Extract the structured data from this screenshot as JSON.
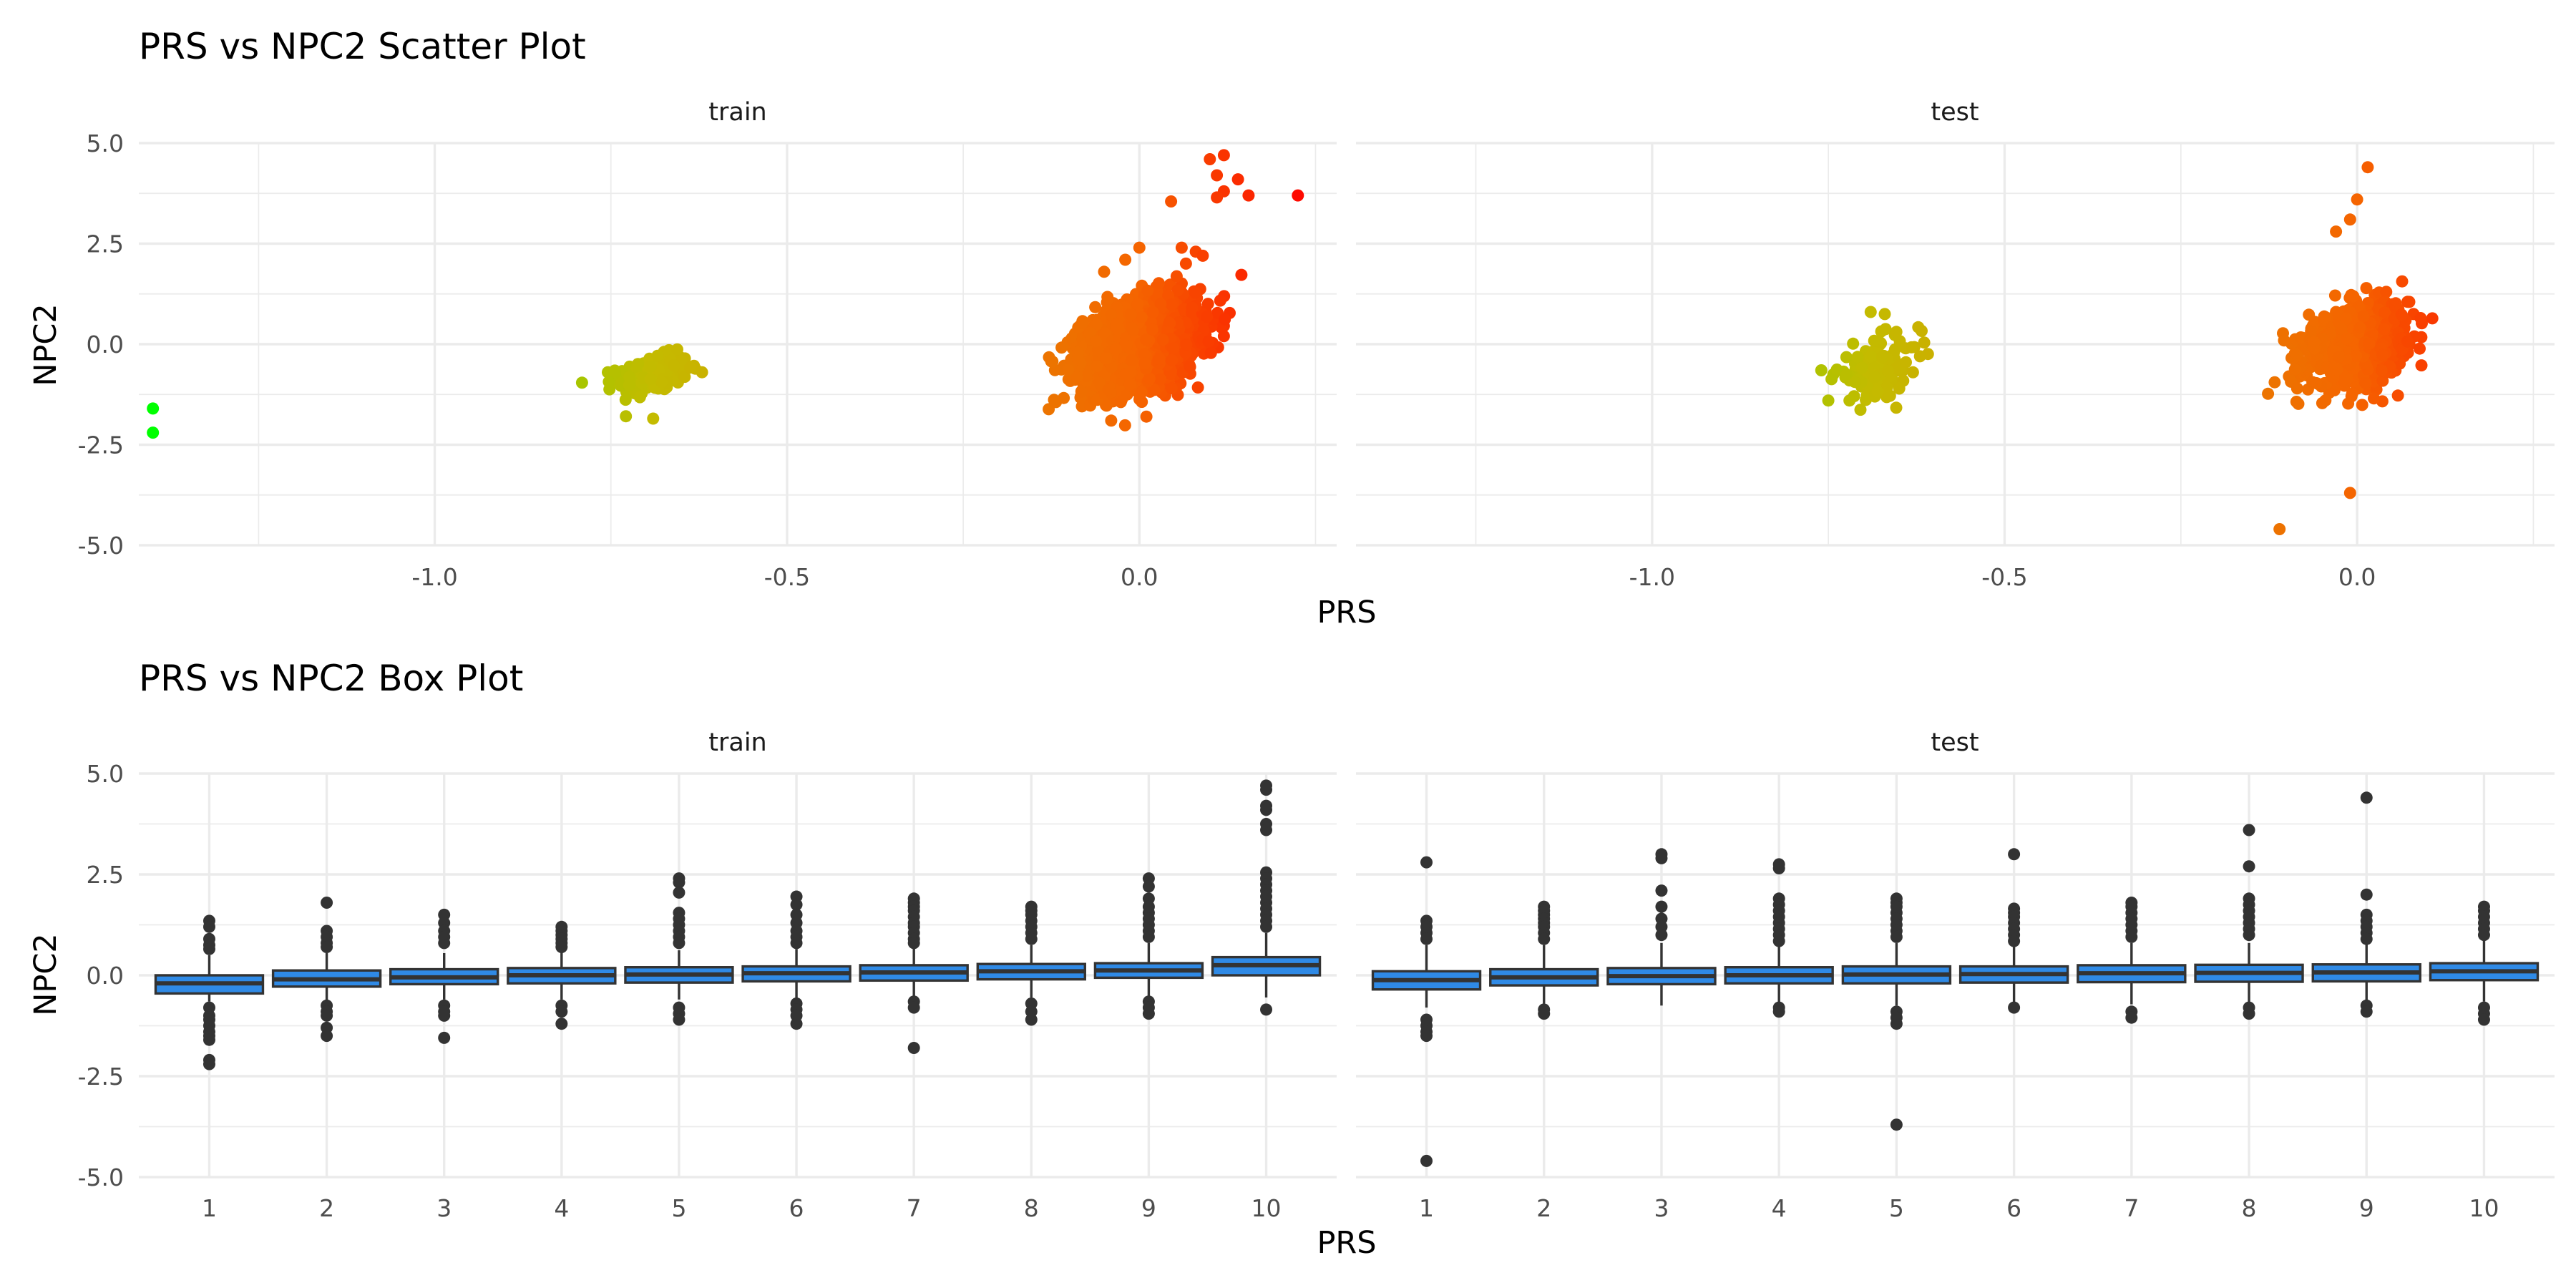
{
  "figure": {
    "colors": {
      "box_fill": "#2f8ae6",
      "box_stroke": "#333333",
      "outlier": "#333333",
      "grid": "#ebebeb",
      "gradient_low": "#00ff00",
      "gradient_high": "#ff0000"
    }
  },
  "chart_data": [
    {
      "type": "scatter",
      "title": "PRS vs NPC2 Scatter Plot",
      "xlabel": "PRS",
      "ylabel": "NPC2",
      "facets": [
        "train",
        "test"
      ],
      "xlim": [
        -1.42,
        0.28
      ],
      "ylim": [
        -5.0,
        5.0
      ],
      "xticks": [
        -1.0,
        -0.5,
        0.0
      ],
      "xtick_labels": [
        "-1.0",
        "-0.5",
        "0.0"
      ],
      "yticks": [
        -5.0,
        -2.5,
        0.0,
        2.5,
        5.0
      ],
      "ytick_labels": [
        "-5.0",
        "-2.5",
        "0.0",
        "2.5",
        "5.0"
      ],
      "color_mapping": "gradient from green (low PRS) to red (high PRS)",
      "grid": true,
      "panels": {
        "train": {
          "clusters": [
            {
              "x_center": -0.69,
              "y_center": -0.75,
              "x_sd": 0.025,
              "y_sd": 0.22,
              "n": 320
            },
            {
              "x_center": 0.0,
              "y_center": 0.0,
              "x_sd": 0.04,
              "y_sd": 0.5,
              "n": 2400
            }
          ],
          "points": [
            [
              -1.4,
              -1.6
            ],
            [
              -1.4,
              -2.2
            ],
            [
              0.1,
              4.6
            ],
            [
              0.12,
              4.7
            ],
            [
              0.11,
              4.2
            ],
            [
              0.14,
              4.1
            ],
            [
              0.12,
              3.8
            ],
            [
              0.11,
              3.65
            ],
            [
              0.155,
              3.7
            ],
            [
              0.045,
              3.55
            ],
            [
              0.225,
              3.7
            ],
            [
              -0.04,
              -1.9
            ],
            [
              0.01,
              -1.8
            ],
            [
              -0.69,
              -1.85
            ],
            [
              0.12,
              0.2
            ],
            [
              -0.05,
              1.8
            ],
            [
              0.0,
              2.4
            ],
            [
              0.08,
              2.3
            ],
            [
              0.06,
              2.4
            ],
            [
              0.09,
              2.2
            ],
            [
              -0.02,
              2.1
            ]
          ]
        },
        "test": {
          "clusters": [
            {
              "x_center": -0.68,
              "y_center": -0.6,
              "x_sd": 0.03,
              "y_sd": 0.35,
              "n": 110
            },
            {
              "x_center": 0.0,
              "y_center": 0.0,
              "x_sd": 0.035,
              "y_sd": 0.45,
              "n": 900
            }
          ],
          "points": [
            [
              0.015,
              4.4
            ],
            [
              0.0,
              3.6
            ],
            [
              -0.01,
              3.1
            ],
            [
              -0.03,
              2.8
            ],
            [
              -0.01,
              -3.7
            ],
            [
              -0.11,
              -4.6
            ],
            [
              0.09,
              0.65
            ],
            [
              -0.69,
              0.8
            ],
            [
              -0.67,
              0.75
            ],
            [
              -0.76,
              -0.65
            ],
            [
              -0.75,
              -1.4
            ],
            [
              -0.72,
              -1.4
            ],
            [
              -0.63,
              -0.7
            ],
            [
              -0.62,
              -0.3
            ],
            [
              -0.64,
              -0.45
            ]
          ]
        }
      }
    },
    {
      "type": "box",
      "title": "PRS vs NPC2 Box Plot",
      "xlabel": "PRS",
      "ylabel": "NPC2",
      "facets": [
        "train",
        "test"
      ],
      "categories": [
        "1",
        "2",
        "3",
        "4",
        "5",
        "6",
        "7",
        "8",
        "9",
        "10"
      ],
      "ylim": [
        -5.0,
        5.0
      ],
      "yticks": [
        -5.0,
        -2.5,
        0.0,
        2.5,
        5.0
      ],
      "ytick_labels": [
        "-5.0",
        "-2.5",
        "0.0",
        "2.5",
        "5.0"
      ],
      "grid": true,
      "panels": {
        "train": [
          {
            "q1": -0.45,
            "median": -0.2,
            "q3": 0.0,
            "lower": -0.65,
            "upper": 0.5,
            "outliers": [
              1.35,
              1.2,
              0.9,
              0.75,
              0.65,
              -0.8,
              -1.0,
              -1.1,
              -1.25,
              -1.4,
              -1.5,
              -1.6,
              -2.1,
              -2.2
            ]
          },
          {
            "q1": -0.28,
            "median": -0.1,
            "q3": 0.12,
            "lower": -0.62,
            "upper": 0.55,
            "outliers": [
              1.8,
              1.1,
              0.95,
              0.8,
              0.7,
              -0.75,
              -0.9,
              -1.0,
              -1.3,
              -1.5
            ]
          },
          {
            "q1": -0.22,
            "median": -0.05,
            "q3": 0.15,
            "lower": -0.6,
            "upper": 0.55,
            "outliers": [
              1.5,
              1.3,
              1.1,
              0.95,
              0.8,
              -0.75,
              -0.9,
              -1.0,
              -1.55
            ]
          },
          {
            "q1": -0.2,
            "median": 0.0,
            "q3": 0.18,
            "lower": -0.6,
            "upper": 0.6,
            "outliers": [
              1.2,
              1.1,
              1.0,
              0.9,
              0.8,
              0.7,
              -0.75,
              -0.9,
              -1.2
            ]
          },
          {
            "q1": -0.18,
            "median": 0.02,
            "q3": 0.2,
            "lower": -0.6,
            "upper": 0.62,
            "outliers": [
              2.4,
              2.3,
              2.05,
              1.55,
              1.4,
              1.25,
              1.1,
              0.95,
              0.8,
              -0.8,
              -0.95,
              -1.1
            ]
          },
          {
            "q1": -0.15,
            "median": 0.05,
            "q3": 0.22,
            "lower": -0.6,
            "upper": 0.65,
            "outliers": [
              1.95,
              1.75,
              1.5,
              1.3,
              1.1,
              0.95,
              0.8,
              -0.7,
              -0.85,
              -1.0,
              -1.2
            ]
          },
          {
            "q1": -0.13,
            "median": 0.07,
            "q3": 0.25,
            "lower": -0.6,
            "upper": 0.7,
            "outliers": [
              1.9,
              1.8,
              1.7,
              1.6,
              1.45,
              1.3,
              1.2,
              1.05,
              0.9,
              0.8,
              -0.65,
              -0.8,
              -1.8
            ]
          },
          {
            "q1": -0.1,
            "median": 0.1,
            "q3": 0.28,
            "lower": -0.55,
            "upper": 0.75,
            "outliers": [
              1.7,
              1.6,
              1.5,
              1.35,
              1.2,
              1.05,
              0.9,
              -0.7,
              -0.9,
              -1.1
            ]
          },
          {
            "q1": -0.06,
            "median": 0.12,
            "q3": 0.3,
            "lower": -0.55,
            "upper": 0.8,
            "outliers": [
              2.4,
              2.2,
              1.9,
              1.7,
              1.55,
              1.4,
              1.25,
              1.1,
              0.95,
              -0.65,
              -0.8,
              -0.95
            ]
          },
          {
            "q1": 0.0,
            "median": 0.25,
            "q3": 0.45,
            "lower": -0.55,
            "upper": 1.05,
            "outliers": [
              4.7,
              4.6,
              4.2,
              4.1,
              3.75,
              3.6,
              2.55,
              2.4,
              2.25,
              2.1,
              1.95,
              1.8,
              1.65,
              1.5,
              1.35,
              1.2,
              -0.85
            ]
          }
        ],
        "test": [
          {
            "q1": -0.35,
            "median": -0.12,
            "q3": 0.1,
            "lower": -0.8,
            "upper": 0.75,
            "outliers": [
              2.8,
              1.35,
              1.2,
              1.05,
              0.9,
              -1.1,
              -1.25,
              -1.4,
              -1.5,
              -4.6
            ]
          },
          {
            "q1": -0.25,
            "median": -0.05,
            "q3": 0.15,
            "lower": -0.7,
            "upper": 0.75,
            "outliers": [
              1.7,
              1.6,
              1.5,
              1.4,
              1.3,
              1.2,
              1.05,
              0.9,
              -0.85,
              -0.95
            ]
          },
          {
            "q1": -0.22,
            "median": -0.02,
            "q3": 0.18,
            "lower": -0.75,
            "upper": 0.8,
            "outliers": [
              3.0,
              2.9,
              2.1,
              1.7,
              1.4,
              1.2,
              1.0
            ]
          },
          {
            "q1": -0.2,
            "median": 0.0,
            "q3": 0.2,
            "lower": -0.7,
            "upper": 0.75,
            "outliers": [
              2.75,
              2.65,
              1.9,
              1.75,
              1.6,
              1.45,
              1.3,
              1.15,
              1.0,
              0.85,
              -0.8,
              -0.9
            ]
          },
          {
            "q1": -0.2,
            "median": 0.02,
            "q3": 0.22,
            "lower": -0.75,
            "upper": 0.8,
            "outliers": [
              1.9,
              1.8,
              1.7,
              1.55,
              1.4,
              1.25,
              1.1,
              0.95,
              -0.9,
              -1.05,
              -1.2,
              -3.7
            ]
          },
          {
            "q1": -0.18,
            "median": 0.03,
            "q3": 0.22,
            "lower": -0.7,
            "upper": 0.78,
            "outliers": [
              3.0,
              1.65,
              1.55,
              1.45,
              1.3,
              1.15,
              1.0,
              0.85,
              -0.8
            ]
          },
          {
            "q1": -0.17,
            "median": 0.05,
            "q3": 0.25,
            "lower": -0.72,
            "upper": 0.8,
            "outliers": [
              1.8,
              1.7,
              1.55,
              1.4,
              1.25,
              1.1,
              0.95,
              -0.9,
              -1.05
            ]
          },
          {
            "q1": -0.16,
            "median": 0.06,
            "q3": 0.26,
            "lower": -0.7,
            "upper": 0.8,
            "outliers": [
              3.6,
              2.7,
              1.9,
              1.75,
              1.6,
              1.45,
              1.3,
              1.15,
              1.0,
              -0.8,
              -0.95
            ]
          },
          {
            "q1": -0.15,
            "median": 0.07,
            "q3": 0.27,
            "lower": -0.7,
            "upper": 0.82,
            "outliers": [
              4.4,
              2.0,
              1.5,
              1.35,
              1.2,
              1.05,
              0.9,
              -0.75,
              -0.9
            ]
          },
          {
            "q1": -0.12,
            "median": 0.1,
            "q3": 0.3,
            "lower": -0.65,
            "upper": 0.88,
            "outliers": [
              1.7,
              1.6,
              1.45,
              1.3,
              1.15,
              1.0,
              -0.8,
              -0.95,
              -1.1
            ]
          }
        ]
      }
    }
  ]
}
